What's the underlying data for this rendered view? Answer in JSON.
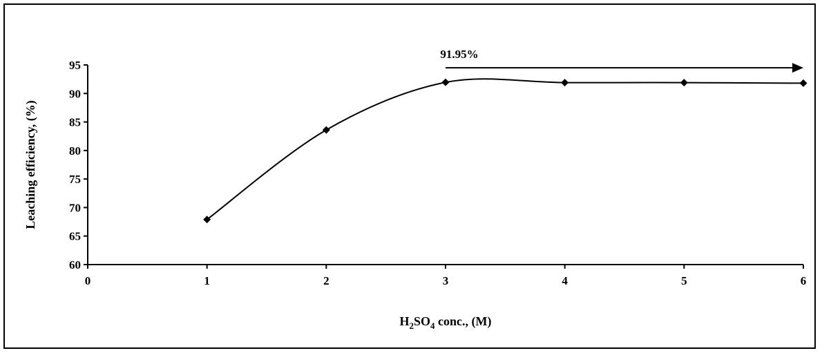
{
  "chart_data": {
    "type": "line",
    "xlabel": {
      "base": "H",
      "sub1": "2",
      "mid": "SO",
      "sub2": "4",
      "tail": " conc., (M)"
    },
    "ylabel": "Leaching efficiency, (%)",
    "xlim": [
      0,
      6
    ],
    "ylim": [
      60,
      95
    ],
    "x_ticks": [
      0,
      1,
      2,
      3,
      4,
      5,
      6
    ],
    "y_ticks": [
      60,
      65,
      70,
      75,
      80,
      85,
      90,
      95
    ],
    "grid": false,
    "legend": "none",
    "line_style": "smoothed",
    "marker": "diamond",
    "color": "#000000",
    "series": [
      {
        "x": [
          1,
          2,
          3,
          4,
          5,
          6
        ],
        "values": [
          67.9,
          83.6,
          91.95,
          91.9,
          91.9,
          91.8
        ]
      }
    ],
    "annotation": {
      "text": "91.95%",
      "arrow_x_start": 3,
      "arrow_x_end": 6,
      "arrow_y": 94.5
    }
  }
}
